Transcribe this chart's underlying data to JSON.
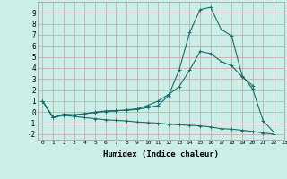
{
  "xlabel": "Humidex (Indice chaleur)",
  "xlim": [
    -0.5,
    23
  ],
  "ylim": [
    -2.5,
    10
  ],
  "yticks": [
    -2,
    -1,
    0,
    1,
    2,
    3,
    4,
    5,
    6,
    7,
    8,
    9
  ],
  "xticks": [
    0,
    1,
    2,
    3,
    4,
    5,
    6,
    7,
    8,
    9,
    10,
    11,
    12,
    13,
    14,
    15,
    16,
    17,
    18,
    19,
    20,
    21,
    22,
    23
  ],
  "bg_color": "#cceee8",
  "grid_color_v": "#c8a0a0",
  "grid_color_h": "#c8a0a0",
  "line_color": "#1a6b6b",
  "line1_x": [
    0,
    1,
    2,
    3,
    4,
    5,
    6,
    7,
    8,
    9,
    10,
    11,
    12,
    13,
    14,
    15,
    16,
    17,
    18,
    19,
    20,
    21,
    22
  ],
  "line1_y": [
    1.0,
    -0.5,
    -0.2,
    -0.25,
    -0.15,
    0.0,
    0.1,
    0.15,
    0.15,
    0.25,
    0.4,
    0.6,
    1.5,
    3.8,
    7.2,
    9.3,
    9.5,
    7.5,
    6.9,
    3.3,
    2.1,
    -0.8,
    -1.8
  ],
  "line2_x": [
    0,
    1,
    2,
    3,
    4,
    5,
    6,
    7,
    8,
    9,
    10,
    11,
    12,
    13,
    14,
    15,
    16,
    17,
    18,
    19,
    20
  ],
  "line2_y": [
    1.0,
    -0.5,
    -0.2,
    -0.3,
    -0.15,
    -0.05,
    0.05,
    0.1,
    0.2,
    0.3,
    0.6,
    1.0,
    1.6,
    2.3,
    3.8,
    5.5,
    5.3,
    4.6,
    4.2,
    3.2,
    2.4
  ],
  "line3_x": [
    0,
    1,
    2,
    3,
    4,
    5,
    6,
    7,
    8,
    9,
    10,
    11,
    12,
    13,
    14,
    15,
    16,
    17,
    18,
    19,
    20,
    21,
    22
  ],
  "line3_y": [
    1.0,
    -0.5,
    -0.3,
    -0.4,
    -0.5,
    -0.6,
    -0.7,
    -0.75,
    -0.8,
    -0.9,
    -0.95,
    -1.0,
    -1.1,
    -1.15,
    -1.2,
    -1.25,
    -1.35,
    -1.5,
    -1.55,
    -1.65,
    -1.75,
    -1.9,
    -2.0
  ]
}
